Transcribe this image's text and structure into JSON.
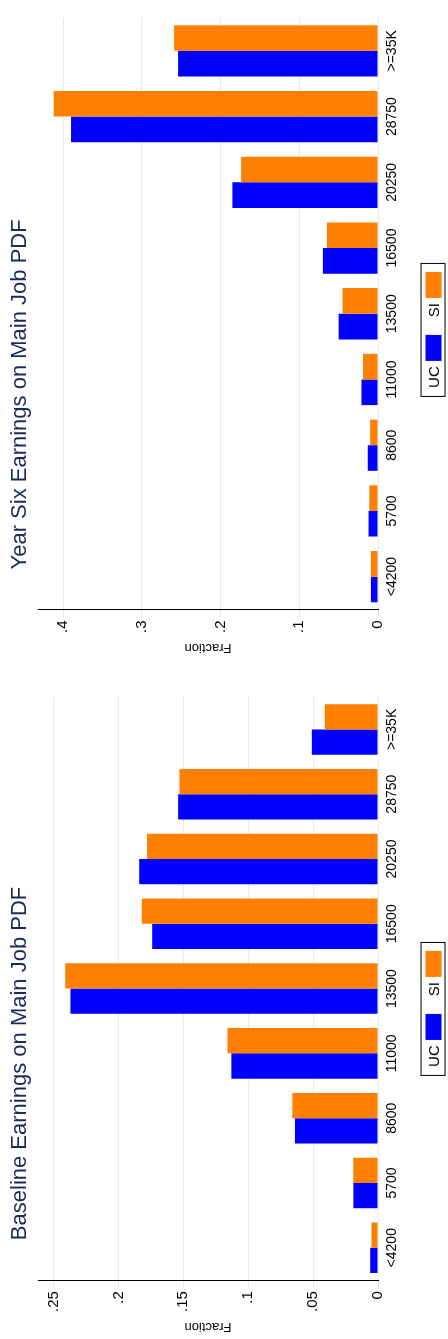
{
  "chart_data": [
    {
      "type": "bar",
      "orientation": "horizontal",
      "title": "Baseline Earnings on Main Job PDF",
      "xlabel": "Fraction",
      "categories": [
        ">=35K",
        "28750",
        "20250",
        "16500",
        "13500",
        "11000",
        "8600",
        "5700",
        "<4200"
      ],
      "series": [
        {
          "name": "UC",
          "color": "#0000ff",
          "values": [
            0.051,
            0.154,
            0.184,
            0.174,
            0.237,
            0.113,
            0.064,
            0.019,
            0.006
          ]
        },
        {
          "name": "SI",
          "color": "#ff8000",
          "values": [
            0.041,
            0.153,
            0.178,
            0.182,
            0.241,
            0.116,
            0.066,
            0.019,
            0.005
          ]
        }
      ],
      "xlim": [
        0.262,
        0
      ],
      "xticks": [
        {
          "value": 0.25,
          "label": ".25"
        },
        {
          "value": 0.2,
          "label": ".2"
        },
        {
          "value": 0.15,
          "label": ".15"
        },
        {
          "value": 0.1,
          "label": ".1"
        },
        {
          "value": 0.05,
          "label": ".05"
        },
        0
      ],
      "grid": "x",
      "legend": "right"
    },
    {
      "type": "bar",
      "orientation": "horizontal",
      "title": "Year Six Earnings on Main Job PDF",
      "xlabel": "Fraction",
      "categories": [
        ">=35K",
        "28750",
        "20250",
        "16500",
        "13500",
        "11000",
        "8600",
        "5700",
        "<4200"
      ],
      "series": [
        {
          "name": "UC",
          "color": "#0000ff",
          "values": [
            0.254,
            0.39,
            0.185,
            0.07,
            0.05,
            0.021,
            0.013,
            0.012,
            0.009
          ]
        },
        {
          "name": "SI",
          "color": "#ff8000",
          "values": [
            0.259,
            0.412,
            0.174,
            0.065,
            0.045,
            0.019,
            0.01,
            0.011,
            0.009
          ]
        }
      ],
      "xlim": [
        0.432,
        0
      ],
      "xticks": [
        {
          "value": 0.4,
          "label": ".4"
        },
        {
          "value": 0.3,
          "label": ".3"
        },
        {
          "value": 0.2,
          "label": ".2"
        },
        {
          "value": 0.1,
          "label": ".1"
        },
        0
      ],
      "grid": "x",
      "legend": "right"
    }
  ]
}
